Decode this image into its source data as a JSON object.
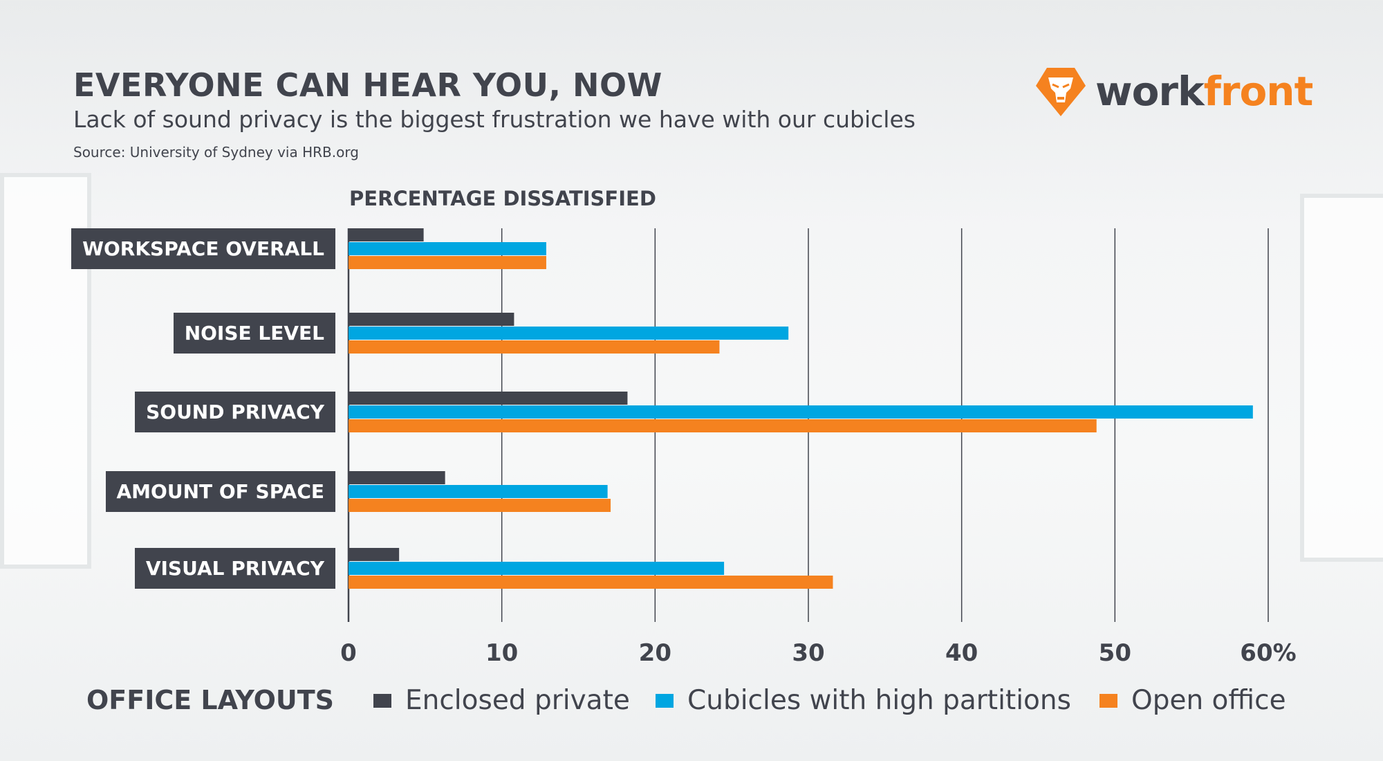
{
  "header": {
    "title": "EVERYONE CAN HEAR YOU, NOW",
    "subtitle": "Lack of sound privacy is the biggest frustration we have with our cubicles",
    "source": "Source: University of Sydney via HRB.org"
  },
  "logo": {
    "part1": "work",
    "part2": "front",
    "icon": "lion-head-icon"
  },
  "colors": {
    "dark": "#41444d",
    "blue": "#00a6e1",
    "orange": "#f5821f"
  },
  "chart_data": {
    "type": "bar",
    "orientation": "horizontal",
    "title": "PERCENTAGE DISSATISFIED",
    "categories": [
      "WORKSPACE OVERALL",
      "NOISE LEVEL",
      "SOUND PRIVACY",
      "AMOUNT OF SPACE",
      "VISUAL PRIVACY"
    ],
    "series": [
      {
        "name": "Enclosed private",
        "color": "#41444d",
        "values": [
          4.9,
          10.8,
          18.2,
          6.3,
          3.3
        ]
      },
      {
        "name": "Cubicles with high partitions",
        "color": "#00a6e1",
        "values": [
          12.9,
          28.7,
          59.0,
          16.9,
          24.5
        ]
      },
      {
        "name": "Open office",
        "color": "#f5821f",
        "values": [
          12.9,
          24.2,
          48.8,
          17.1,
          31.6
        ]
      }
    ],
    "xlim": [
      0,
      60
    ],
    "ticks": [
      "0",
      "10",
      "20",
      "30",
      "40",
      "50",
      "60%"
    ],
    "grid": true,
    "legend_title": "OFFICE LAYOUTS",
    "legend_position": "bottom"
  }
}
